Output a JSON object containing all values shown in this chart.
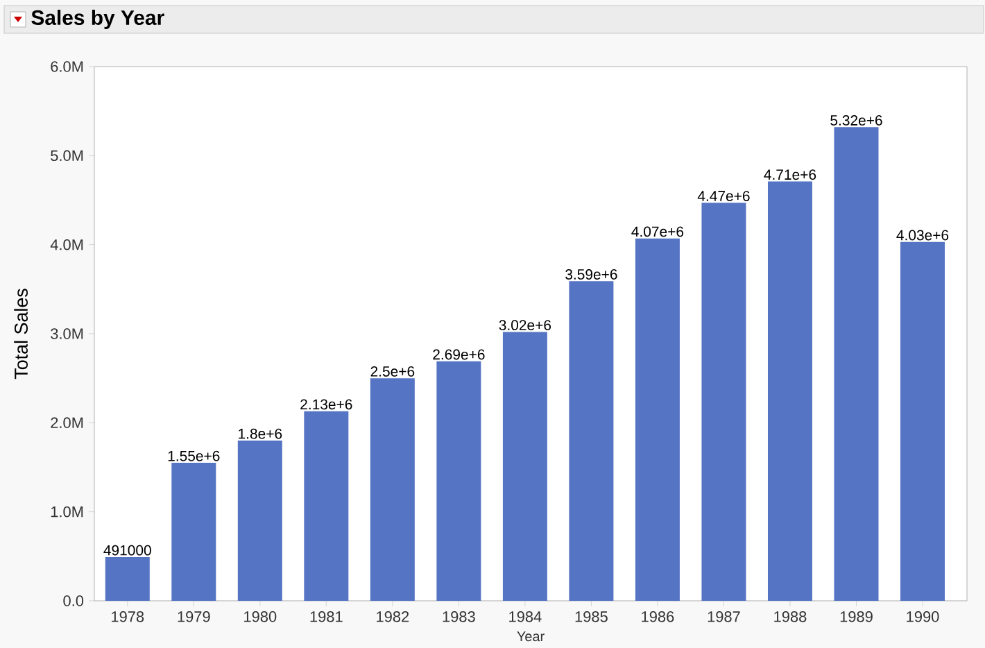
{
  "chart_data": {
    "type": "bar",
    "title": "Sales by Year",
    "xlabel": "Year",
    "ylabel": "Total Sales",
    "categories": [
      "1978",
      "1979",
      "1980",
      "1981",
      "1982",
      "1983",
      "1984",
      "1985",
      "1986",
      "1987",
      "1988",
      "1989",
      "1990"
    ],
    "values": [
      491000,
      1550000,
      1800000,
      2130000,
      2500000,
      2690000,
      3020000,
      3590000,
      4070000,
      4470000,
      4710000,
      5320000,
      4030000
    ],
    "value_labels": [
      "491000",
      "1.55e+6",
      "1.8e+6",
      "2.13e+6",
      "2.5e+6",
      "2.69e+6",
      "3.02e+6",
      "3.59e+6",
      "4.07e+6",
      "4.47e+6",
      "4.71e+6",
      "5.32e+6",
      "4.03e+6"
    ],
    "color": "#5574c4",
    "ylim": [
      0,
      6000000
    ],
    "yticks": [
      {
        "value": 0,
        "label": "0.0"
      },
      {
        "value": 1000000,
        "label": "1.0M"
      },
      {
        "value": 2000000,
        "label": "2.0M"
      },
      {
        "value": 3000000,
        "label": "3.0M"
      },
      {
        "value": 4000000,
        "label": "4.0M"
      },
      {
        "value": 5000000,
        "label": "5.0M"
      },
      {
        "value": 6000000,
        "label": "6.0M"
      }
    ]
  }
}
